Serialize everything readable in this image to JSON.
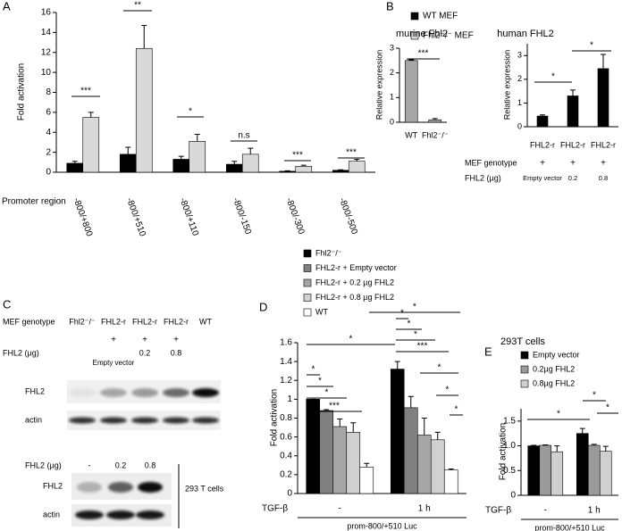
{
  "panel_labels": [
    "A",
    "B",
    "C",
    "D",
    "E"
  ],
  "chart_data": [
    {
      "type": "bar",
      "y_label": "Fold activation",
      "x_label": "Promoter region",
      "categories": [
        "-800/+800",
        "-800/+510",
        "-800/+110",
        "-800/-150",
        "-800/-300",
        "-800/-500"
      ],
      "series": [
        {
          "name": "WT MEF",
          "color": "#000000",
          "values": [
            0.9,
            1.8,
            1.3,
            0.8,
            0.1,
            0.2
          ],
          "errors": [
            0.2,
            0.7,
            0.3,
            0.3,
            0.05,
            0.05
          ]
        },
        {
          "name": "Fhl2⁻/⁻ MEF",
          "color": "#d9d9d9",
          "values": [
            5.5,
            12.4,
            3.1,
            1.8,
            0.6,
            1.1
          ],
          "errors": [
            0.5,
            2.3,
            0.7,
            0.6,
            0.1,
            0.2
          ]
        }
      ],
      "ylim": [
        0,
        16
      ],
      "yticks": [
        0,
        2,
        4,
        6,
        8,
        10,
        12,
        14,
        16
      ],
      "annotations": [
        "***",
        "**",
        "*",
        "n.s",
        "***",
        "***"
      ]
    },
    {
      "type": "bar",
      "title": "murine Fhl2",
      "y_label": "Relative expression",
      "categories": [
        "WT",
        "Fhl2⁻/⁻"
      ],
      "values": [
        2.5,
        0.1
      ],
      "errors": [
        0.03,
        0.05
      ],
      "color": "#a6a6a6",
      "ylim": [
        0,
        3
      ],
      "yticks": [
        0,
        1,
        2,
        3
      ],
      "annotations": [
        "***"
      ]
    },
    {
      "type": "bar",
      "title": "human FHL2",
      "y_label": "Relative expression",
      "categories": [
        "FHL2-r",
        "FHL2-r",
        "FHL2-r"
      ],
      "values": [
        0.45,
        1.3,
        2.45
      ],
      "errors": [
        0.05,
        0.25,
        0.6
      ],
      "color": "#000000",
      "ylim": [
        0,
        3.5
      ],
      "yticks": [
        0,
        1,
        2,
        3
      ],
      "annotations": [
        "*",
        "*"
      ],
      "conditions": {
        "genotype_label": "MEF genotype",
        "genotype_marks": [
          "+",
          "+",
          "+"
        ],
        "dose_label": "FHL2 (µg)",
        "doses": [
          "Empty vector",
          "0.2",
          "0.8"
        ]
      }
    },
    {
      "type": "bar",
      "y_label": "Fold activation",
      "x_label": "TGF-β",
      "x_note": "prom-800/+510 Luc",
      "categories": [
        "-",
        "1 h"
      ],
      "series": [
        {
          "name": "Fhl2⁻/⁻",
          "color": "#000000",
          "values": [
            1.0,
            1.32
          ],
          "errors": [
            0,
            0.08
          ]
        },
        {
          "name": "FHL2-r + Empty vector",
          "color": "#808080",
          "values": [
            0.88,
            0.91
          ],
          "errors": [
            0.01,
            0.12
          ]
        },
        {
          "name": "FHL2-r + 0.2 µg FHL2",
          "color": "#a6a6a6",
          "values": [
            0.71,
            0.62
          ],
          "errors": [
            0.08,
            0.18
          ]
        },
        {
          "name": "FHL2-r + 0.8 µg FHL2",
          "color": "#d0d0d0",
          "values": [
            0.65,
            0.57
          ],
          "errors": [
            0.1,
            0.08
          ]
        },
        {
          "name": "WT",
          "color": "#ffffff",
          "values": [
            0.28,
            0.25
          ],
          "errors": [
            0.04,
            0.01
          ]
        }
      ],
      "ylim": [
        0,
        1.6
      ],
      "yticks": [
        0,
        0.2,
        0.4,
        0.6,
        0.8,
        1,
        1.2,
        1.4,
        1.6
      ],
      "annotations": [
        "*",
        "*",
        "*",
        "***",
        "*",
        "*",
        "*",
        "*",
        "*",
        "***",
        "*",
        "*",
        "*"
      ]
    },
    {
      "type": "bar",
      "title": "293T cells",
      "y_label": "Fold activation",
      "x_label": "TGF-β",
      "x_note": "prom-800/+510 Luc",
      "categories": [
        "-",
        "1 h"
      ],
      "series": [
        {
          "name": "Empty vector",
          "color": "#000000",
          "values": [
            1.0,
            1.25
          ],
          "errors": [
            0.01,
            0.1
          ]
        },
        {
          "name": "0.2µg FHL2",
          "color": "#9a9a9a",
          "values": [
            1.01,
            1.01
          ],
          "errors": [
            0.01,
            0.02
          ]
        },
        {
          "name": "0.8µg FHL2",
          "color": "#d0d0d0",
          "values": [
            0.88,
            0.89
          ],
          "errors": [
            0.12,
            0.1
          ]
        }
      ],
      "ylim": [
        0,
        1.75
      ],
      "yticks": [
        0,
        0.5,
        {
          "value": 1,
          "label": "1.0"
        },
        1.5
      ],
      "annotations": [
        "*",
        "*",
        "*"
      ]
    }
  ],
  "blot": {
    "genotype_label": "MEF genotype",
    "lanes": [
      "Fhl2⁻/⁻",
      "FHL2-r",
      "FHL2-r",
      "FHL2-r",
      "WT"
    ],
    "plus": [
      "+",
      "+",
      "+"
    ],
    "dose_label": "FHL2 (µg)",
    "doses": [
      "Empty vector",
      "0.2",
      "0.8"
    ],
    "rows": [
      "FHL2",
      "actin"
    ]
  },
  "blot_293t": {
    "dose_label": "FHL2 (µg)",
    "doses": [
      "-",
      "0.2",
      "0.8"
    ],
    "rows": [
      "FHL2",
      "actin"
    ],
    "cell_line": "293 T cells"
  }
}
